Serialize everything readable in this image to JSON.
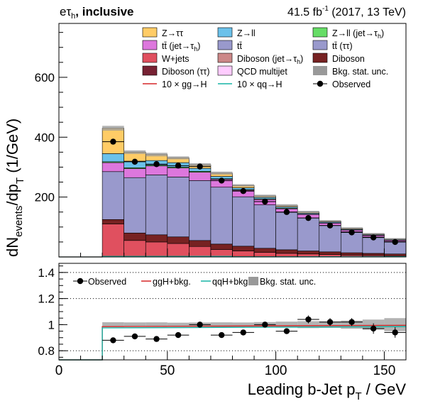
{
  "header": {
    "channel": "eτ",
    "channel_sub": "h",
    "category": ", inclusive",
    "lumi": "41.5 fb",
    "lumi_sup": "-1",
    "lumi_rest": " (2017, 13 TeV)"
  },
  "axes": {
    "ylabel_main": "dN",
    "ylabel_sub": "events",
    "ylabel_rest": "/dp",
    "ylabel_sub2": "T",
    "ylabel_unit": " (1/GeV)",
    "xlabel": "Leading b-Jet p",
    "xlabel_sub": "T",
    "xlabel_unit": " / GeV"
  },
  "legend_main": [
    {
      "label": "Z→ττ",
      "color": "#ffcc66",
      "kind": "box"
    },
    {
      "label": "Z→ll",
      "color": "#6bc1ea",
      "kind": "box"
    },
    {
      "label": "Z→ll (jet→τ",
      "sub": "h",
      "tail": ")",
      "color": "#66dd66",
      "kind": "box"
    },
    {
      "label": "tt̄ (jet→τ",
      "sub": "h",
      "tail": ")",
      "color": "#dd77dd",
      "kind": "box"
    },
    {
      "label": "tt̄",
      "color": "#9999cc",
      "kind": "box"
    },
    {
      "label": "tt̄ (ττ)",
      "color": "#9999cc",
      "kind": "box"
    },
    {
      "label": "W+jets",
      "color": "#e0505f",
      "kind": "box"
    },
    {
      "label": "Diboson (jet→τ",
      "sub": "h",
      "tail": ")",
      "color": "#cc8888",
      "kind": "box"
    },
    {
      "label": "Diboson",
      "color": "#772222",
      "kind": "box"
    },
    {
      "label": "Diboson (ττ)",
      "color": "#772233",
      "kind": "box"
    },
    {
      "label": "QCD multijet",
      "color": "#ffccff",
      "kind": "box"
    },
    {
      "label": "Bkg. stat. unc.",
      "color": "#999999",
      "kind": "box"
    },
    {
      "label": "10 × gg→H",
      "color": "#d62728",
      "kind": "line"
    },
    {
      "label": "10 × qq→H",
      "color": "#17b4a6",
      "kind": "line"
    },
    {
      "label": "Observed",
      "color": "#000000",
      "kind": "marker"
    }
  ],
  "legend_ratio": [
    {
      "label": "Observed",
      "kind": "marker",
      "color": "#000000"
    },
    {
      "label": "ggH+bkg.",
      "kind": "line",
      "color": "#d62728"
    },
    {
      "label": "qqH+bkg.",
      "kind": "line",
      "color": "#17b4a6"
    },
    {
      "label": "Bkg. stat. unc.",
      "kind": "box",
      "color": "#999999"
    }
  ],
  "chart_data": [
    {
      "type": "bar",
      "stacked": true,
      "x_edges": [
        0,
        20,
        30,
        40,
        50,
        60,
        70,
        80,
        90,
        100,
        110,
        120,
        130,
        140,
        150,
        160
      ],
      "xlim": [
        0,
        160
      ],
      "ylim": [
        0,
        780
      ],
      "yticks": [
        200,
        400,
        600
      ],
      "xticks": [
        0,
        50,
        100,
        150
      ],
      "stack": [
        {
          "name": "W+jets",
          "color": "#e0505f",
          "values": [
            0,
            110,
            55,
            50,
            45,
            35,
            25,
            20,
            15,
            12,
            10,
            8,
            6,
            5,
            4
          ]
        },
        {
          "name": "Diboson",
          "color": "#772222",
          "values": [
            0,
            15,
            25,
            24,
            22,
            20,
            18,
            16,
            14,
            12,
            10,
            9,
            8,
            7,
            6
          ]
        },
        {
          "name": "tt̄",
          "color": "#9999cc",
          "values": [
            0,
            160,
            185,
            200,
            200,
            200,
            190,
            165,
            145,
            125,
            110,
            88,
            70,
            55,
            42
          ]
        },
        {
          "name": "tt̄ (jet→τh)",
          "color": "#dd77dd",
          "values": [
            0,
            30,
            30,
            30,
            30,
            28,
            26,
            22,
            18,
            12,
            12,
            8,
            6,
            5,
            4
          ]
        },
        {
          "name": "Z→ll (jet→τh)",
          "color": "#66dd66",
          "values": [
            0,
            3,
            3,
            3,
            3,
            3,
            2,
            2,
            2,
            2,
            1,
            1,
            1,
            1,
            1
          ]
        },
        {
          "name": "Z→ll",
          "color": "#6bc1ea",
          "values": [
            0,
            27,
            22,
            15,
            15,
            10,
            8,
            6,
            5,
            4,
            3,
            3,
            2,
            2,
            2
          ]
        },
        {
          "name": "Z→ττ",
          "color": "#ffcc66",
          "values": [
            0,
            85,
            30,
            20,
            16,
            12,
            11,
            8,
            5,
            5,
            4,
            3,
            3,
            2,
            1
          ]
        }
      ],
      "band_halfwidth": [
        0,
        8,
        6,
        6,
        5,
        5,
        5,
        4,
        4,
        4,
        4,
        3,
        3,
        3,
        3
      ],
      "observed": {
        "x": [
          25,
          35,
          45,
          55,
          65,
          75,
          85,
          95,
          105,
          115,
          125,
          135,
          145,
          155
        ],
        "y": [
          385,
          318,
          310,
          305,
          302,
          255,
          220,
          185,
          150,
          130,
          105,
          82,
          65,
          50
        ]
      }
    },
    {
      "type": "line",
      "name": "ratio",
      "xlim": [
        0,
        160
      ],
      "ylim": [
        0.73,
        1.47
      ],
      "yticks": [
        0.8,
        1,
        1.2,
        1.4
      ],
      "dotted_gridlines": [
        0.8,
        1.2,
        1.4
      ],
      "ggH_bkg": {
        "x": [
          0,
          20,
          20,
          160
        ],
        "y": [
          0.73,
          0.73,
          0.985,
          0.995
        ]
      },
      "qqH_bkg": {
        "x": [
          0,
          20,
          20,
          160
        ],
        "y": [
          0.73,
          0.73,
          0.975,
          0.985
        ]
      },
      "observed": {
        "x": [
          25,
          35,
          45,
          55,
          65,
          75,
          85,
          95,
          105,
          115,
          125,
          135,
          145,
          155
        ],
        "y": [
          0.88,
          0.91,
          0.89,
          0.92,
          1.0,
          0.92,
          0.94,
          1.0,
          0.95,
          1.04,
          1.02,
          1.02,
          0.97,
          0.94
        ],
        "err": [
          0.015,
          0.015,
          0.015,
          0.015,
          0.02,
          0.02,
          0.02,
          0.02,
          0.02,
          0.03,
          0.03,
          0.03,
          0.04,
          0.04
        ]
      }
    }
  ]
}
